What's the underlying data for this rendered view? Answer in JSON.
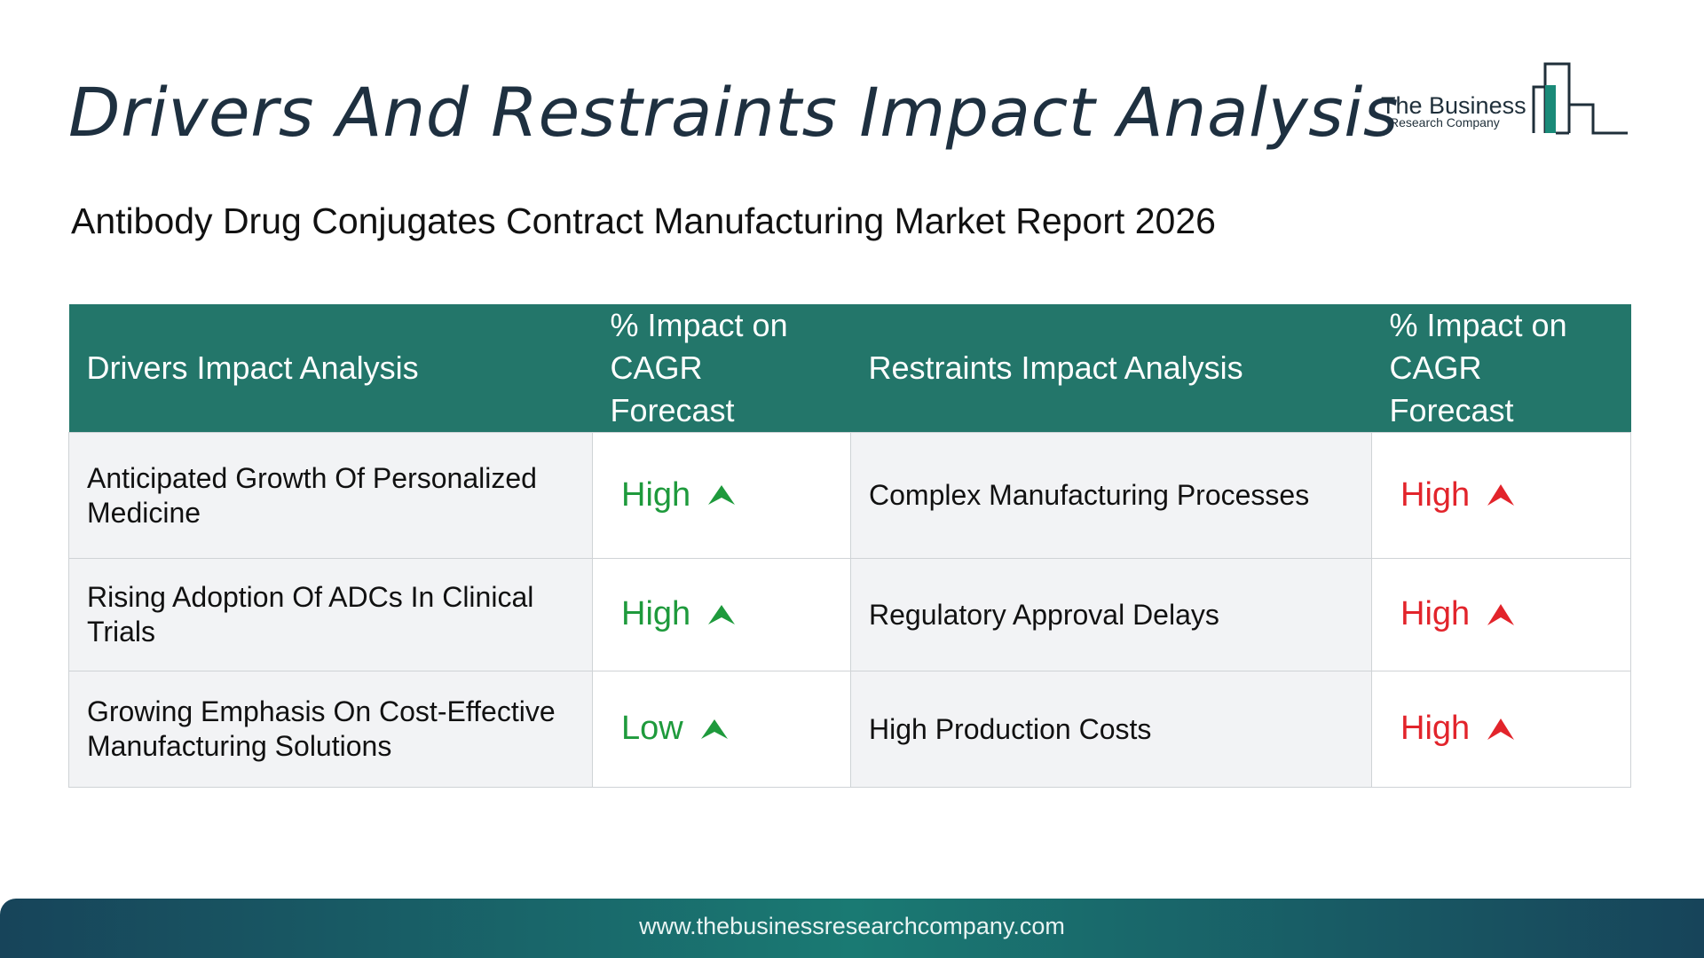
{
  "header": {
    "title": "Drivers And Restraints Impact Analysis",
    "subtitle": "Antibody Drug Conjugates Contract Manufacturing Market Report 2026"
  },
  "logo": {
    "name": "The Business",
    "tagline": "Research Company",
    "color": "#1f2f3a",
    "accent": "#1a8a78"
  },
  "table": {
    "columns": [
      "Drivers Impact Analysis",
      "% Impact on CAGR Forecast",
      "Restraints Impact Analysis",
      "% Impact on CAGR Forecast"
    ],
    "header_color": "#23766a",
    "rows": [
      {
        "driver": "Anticipated Growth Of Personalized Medicine",
        "driver_impact": "High",
        "restraint": "Complex Manufacturing Processes",
        "restraint_impact": "High"
      },
      {
        "driver": "Rising Adoption Of ADCs In Clinical Trials",
        "driver_impact": "High",
        "restraint": "Regulatory Approval Delays",
        "restraint_impact": "High"
      },
      {
        "driver": "Growing Emphasis On Cost-Effective Manufacturing Solutions",
        "driver_impact": "Low",
        "restraint": "High Production Costs",
        "restraint_impact": "High"
      }
    ],
    "driver_impact_color": "#1e9a3c",
    "restraint_impact_color": "#e2242b",
    "driver_icon": "green-up-arrow-icon",
    "restraint_icon": "red-up-arrow-icon"
  },
  "footer": {
    "url": "www.thebusinessresearchcompany.com"
  }
}
